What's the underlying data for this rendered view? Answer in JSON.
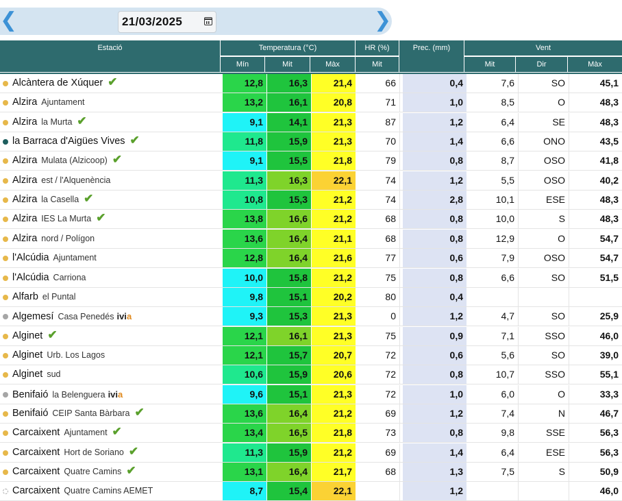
{
  "nav": {
    "prev_icon": "chevron-left-icon",
    "next_icon": "chevron-right-icon",
    "date": "21/03/2025",
    "calendar_icon": "calendar-icon"
  },
  "header": {
    "station": "Estació",
    "temperature": "Temperatura (°C)",
    "temp_min": "Mín",
    "temp_mit": "Mit",
    "temp_max": "Màx",
    "hr": "HR (%)",
    "hr_mit": "Mit",
    "prec": "Prec. (mm)",
    "wind": "Vent",
    "wind_mit": "Mit",
    "wind_dir": "Dir",
    "wind_max": "Màx"
  },
  "colors": {
    "header_bg": "#2e6b6e",
    "dot_yellow": "#e7b84a",
    "dot_teal": "#1e5e5e",
    "dot_gray": "#a6a6a6",
    "check_green": "#5aa02c",
    "prec_bg": "#dde3f3",
    "t_cyan": "#1ff3f7",
    "t_aqua": "#1fe88e",
    "t_green": "#2ad54a",
    "t_green2": "#1fc43d",
    "t_lime": "#7fd32a",
    "t_yellow": "#ffff26",
    "t_amber": "#fbd234"
  },
  "rows": [
    {
      "name": "Alcàntera de Xúquer",
      "sub": "",
      "dot": "yellow",
      "check": true,
      "ivia": false,
      "min": "12,8",
      "mit": "16,3",
      "max": "21,4",
      "hr": "66",
      "prec": "0,4",
      "vmit": "7,6",
      "dir": "SO",
      "vmax": "45,1",
      "c_min": "#2ad54a",
      "c_mit": "#1fc43d",
      "c_max": "#ffff26"
    },
    {
      "name": "Alzira",
      "sub": "Ajuntament",
      "dot": "yellow",
      "check": false,
      "ivia": false,
      "min": "13,2",
      "mit": "16,1",
      "max": "20,8",
      "hr": "71",
      "prec": "1,0",
      "vmit": "8,5",
      "dir": "O",
      "vmax": "48,3",
      "c_min": "#2ad54a",
      "c_mit": "#1fc43d",
      "c_max": "#ffff26"
    },
    {
      "name": "Alzira",
      "sub": "la Murta",
      "dot": "yellow",
      "check": true,
      "ivia": false,
      "min": "9,1",
      "mit": "14,1",
      "max": "21,3",
      "hr": "87",
      "prec": "1,2",
      "vmit": "6,4",
      "dir": "SE",
      "vmax": "48,3",
      "c_min": "#1ff3f7",
      "c_mit": "#1fc43d",
      "c_max": "#ffff26"
    },
    {
      "name": "la Barraca d'Aigües Vives",
      "sub": "",
      "dot": "teal",
      "check": true,
      "ivia": false,
      "min": "11,8",
      "mit": "15,9",
      "max": "21,3",
      "hr": "70",
      "prec": "1,4",
      "vmit": "6,6",
      "dir": "ONO",
      "vmax": "43,5",
      "c_min": "#1fe88e",
      "c_mit": "#1fc43d",
      "c_max": "#ffff26"
    },
    {
      "name": "Alzira",
      "sub": "Mulata (Alzicoop)",
      "dot": "yellow",
      "check": true,
      "ivia": false,
      "min": "9,1",
      "mit": "15,5",
      "max": "21,8",
      "hr": "79",
      "prec": "0,8",
      "vmit": "8,7",
      "dir": "OSO",
      "vmax": "41,8",
      "c_min": "#1ff3f7",
      "c_mit": "#1fc43d",
      "c_max": "#ffff26"
    },
    {
      "name": "Alzira",
      "sub": "est / l'Alquenència",
      "dot": "yellow",
      "check": false,
      "ivia": false,
      "min": "11,3",
      "mit": "16,3",
      "max": "22,1",
      "hr": "74",
      "prec": "1,2",
      "vmit": "5,5",
      "dir": "OSO",
      "vmax": "40,2",
      "c_min": "#1fe88e",
      "c_mit": "#7fd32a",
      "c_max": "#fbd234"
    },
    {
      "name": "Alzira",
      "sub": "la Casella",
      "dot": "yellow",
      "check": true,
      "ivia": false,
      "min": "10,8",
      "mit": "15,3",
      "max": "21,2",
      "hr": "74",
      "prec": "2,8",
      "vmit": "10,1",
      "dir": "ESE",
      "vmax": "48,3",
      "c_min": "#1fe88e",
      "c_mit": "#1fc43d",
      "c_max": "#ffff26"
    },
    {
      "name": "Alzira",
      "sub": "IES La Murta",
      "dot": "yellow",
      "check": true,
      "ivia": false,
      "min": "13,8",
      "mit": "16,6",
      "max": "21,2",
      "hr": "68",
      "prec": "0,8",
      "vmit": "10,0",
      "dir": "S",
      "vmax": "48,3",
      "c_min": "#2ad54a",
      "c_mit": "#7fd32a",
      "c_max": "#ffff26"
    },
    {
      "name": "Alzira",
      "sub": "nord / Polígon",
      "dot": "yellow",
      "check": false,
      "ivia": false,
      "min": "13,6",
      "mit": "16,4",
      "max": "21,1",
      "hr": "68",
      "prec": "0,8",
      "vmit": "12,9",
      "dir": "O",
      "vmax": "54,7",
      "c_min": "#2ad54a",
      "c_mit": "#7fd32a",
      "c_max": "#ffff26"
    },
    {
      "name": "l'Alcúdia",
      "sub": "Ajuntament",
      "dot": "yellow",
      "check": false,
      "ivia": false,
      "min": "12,8",
      "mit": "16,4",
      "max": "21,6",
      "hr": "77",
      "prec": "0,6",
      "vmit": "7,9",
      "dir": "OSO",
      "vmax": "54,7",
      "c_min": "#2ad54a",
      "c_mit": "#7fd32a",
      "c_max": "#ffff26"
    },
    {
      "name": "l'Alcúdia",
      "sub": "Carriona",
      "dot": "yellow",
      "check": false,
      "ivia": false,
      "min": "10,0",
      "mit": "15,8",
      "max": "21,2",
      "hr": "75",
      "prec": "0,8",
      "vmit": "6,6",
      "dir": "SO",
      "vmax": "51,5",
      "c_min": "#1ff3f7",
      "c_mit": "#1fc43d",
      "c_max": "#ffff26"
    },
    {
      "name": "Alfarb",
      "sub": "el Puntal",
      "dot": "yellow",
      "check": false,
      "ivia": false,
      "min": "9,8",
      "mit": "15,1",
      "max": "20,2",
      "hr": "80",
      "prec": "0,4",
      "vmit": "",
      "dir": "",
      "vmax": "",
      "c_min": "#1ff3f7",
      "c_mit": "#1fc43d",
      "c_max": "#ffff26"
    },
    {
      "name": "Algemesí",
      "sub": "Casa Penedés",
      "dot": "gray",
      "check": false,
      "ivia": true,
      "min": "9,3",
      "mit": "15,3",
      "max": "21,3",
      "hr": "0",
      "prec": "1,2",
      "vmit": "4,7",
      "dir": "SO",
      "vmax": "25,9",
      "c_min": "#1ff3f7",
      "c_mit": "#1fc43d",
      "c_max": "#ffff26"
    },
    {
      "name": "Alginet",
      "sub": "",
      "dot": "yellow",
      "check": true,
      "ivia": false,
      "min": "12,1",
      "mit": "16,1",
      "max": "21,3",
      "hr": "75",
      "prec": "0,9",
      "vmit": "7,1",
      "dir": "SSO",
      "vmax": "46,0",
      "c_min": "#2ad54a",
      "c_mit": "#7fd32a",
      "c_max": "#ffff26"
    },
    {
      "name": "Alginet",
      "sub": "Urb. Los Lagos",
      "dot": "yellow",
      "check": false,
      "ivia": false,
      "min": "12,1",
      "mit": "15,7",
      "max": "20,7",
      "hr": "72",
      "prec": "0,6",
      "vmit": "5,6",
      "dir": "SO",
      "vmax": "39,0",
      "c_min": "#2ad54a",
      "c_mit": "#1fc43d",
      "c_max": "#ffff26"
    },
    {
      "name": "Alginet",
      "sub": "sud",
      "dot": "yellow",
      "check": false,
      "ivia": false,
      "min": "10,6",
      "mit": "15,9",
      "max": "20,6",
      "hr": "72",
      "prec": "0,8",
      "vmit": "10,7",
      "dir": "SSO",
      "vmax": "55,1",
      "c_min": "#1fe88e",
      "c_mit": "#1fc43d",
      "c_max": "#ffff26"
    },
    {
      "name": "Benifaió",
      "sub": "la Belenguera",
      "dot": "gray",
      "check": false,
      "ivia": true,
      "min": "9,6",
      "mit": "15,1",
      "max": "21,3",
      "hr": "72",
      "prec": "1,0",
      "vmit": "6,0",
      "dir": "O",
      "vmax": "33,3",
      "c_min": "#1ff3f7",
      "c_mit": "#1fc43d",
      "c_max": "#ffff26"
    },
    {
      "name": "Benifaió",
      "sub": "CEIP Santa Bàrbara",
      "dot": "yellow",
      "check": true,
      "ivia": false,
      "min": "13,6",
      "mit": "16,4",
      "max": "21,2",
      "hr": "69",
      "prec": "1,2",
      "vmit": "7,4",
      "dir": "N",
      "vmax": "46,7",
      "c_min": "#2ad54a",
      "c_mit": "#7fd32a",
      "c_max": "#ffff26"
    },
    {
      "name": "Carcaixent",
      "sub": "Ajuntament",
      "dot": "yellow",
      "check": true,
      "ivia": false,
      "min": "13,4",
      "mit": "16,5",
      "max": "21,8",
      "hr": "73",
      "prec": "0,8",
      "vmit": "9,8",
      "dir": "SSE",
      "vmax": "56,3",
      "c_min": "#2ad54a",
      "c_mit": "#7fd32a",
      "c_max": "#ffff26"
    },
    {
      "name": "Carcaixent",
      "sub": "Hort de Soriano",
      "dot": "yellow",
      "check": true,
      "ivia": false,
      "min": "11,3",
      "mit": "15,9",
      "max": "21,2",
      "hr": "69",
      "prec": "1,4",
      "vmit": "6,4",
      "dir": "ESE",
      "vmax": "56,3",
      "c_min": "#1fe88e",
      "c_mit": "#1fc43d",
      "c_max": "#ffff26"
    },
    {
      "name": "Carcaixent",
      "sub": "Quatre Camins",
      "dot": "yellow",
      "check": true,
      "ivia": false,
      "min": "13,1",
      "mit": "16,4",
      "max": "21,7",
      "hr": "68",
      "prec": "1,3",
      "vmit": "7,5",
      "dir": "S",
      "vmax": "50,9",
      "c_min": "#2ad54a",
      "c_mit": "#7fd32a",
      "c_max": "#ffff26"
    },
    {
      "name": "Carcaixent",
      "sub": "Quatre Camins AEMET",
      "dot": "dashed",
      "check": false,
      "ivia": false,
      "min": "8,7",
      "mit": "15,4",
      "max": "22,1",
      "hr": "",
      "prec": "1,2",
      "vmit": "",
      "dir": "",
      "vmax": "46,0",
      "c_min": "#1ff3f7",
      "c_mit": "#1fc43d",
      "c_max": "#fbd234"
    }
  ]
}
